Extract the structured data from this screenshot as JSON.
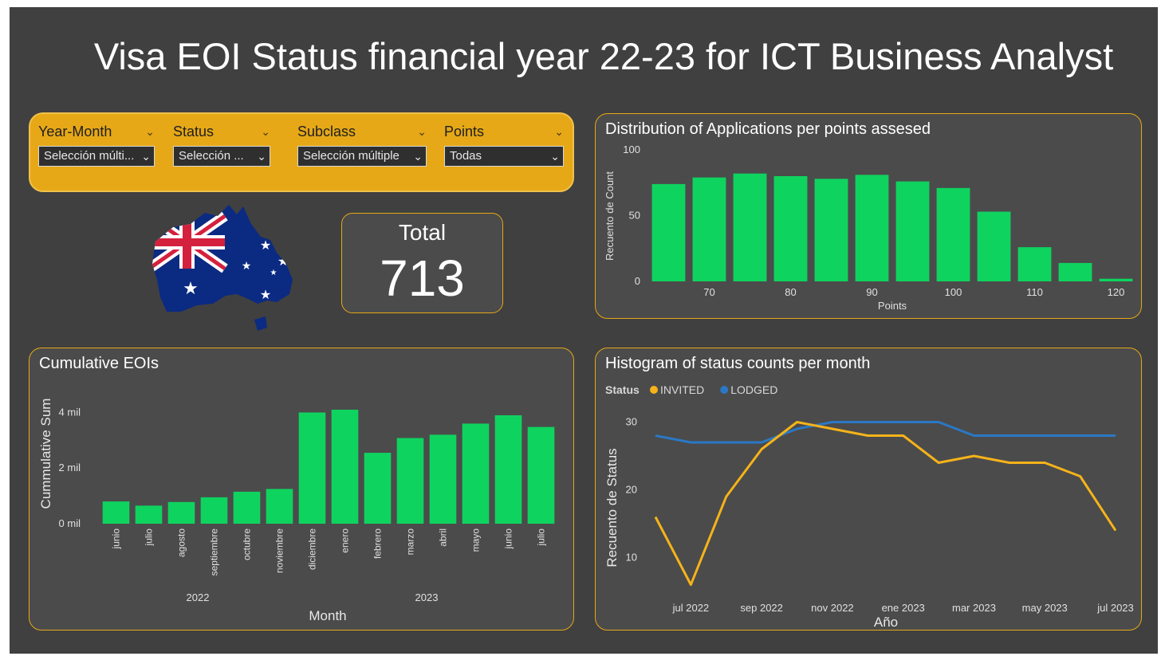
{
  "title": "Visa EOI Status financial year 22-23 for ICT Business Analyst",
  "slicers": [
    {
      "label": "Year-Month",
      "value": "Selección múlti..."
    },
    {
      "label": "Status",
      "value": "Selección ..."
    },
    {
      "label": "Subclass",
      "value": "Selección múltiple"
    },
    {
      "label": "Points",
      "value": "Todas"
    }
  ],
  "card": {
    "label": "Total",
    "value": "713"
  },
  "colors": {
    "bar": "#0fd35f",
    "invited": "#f5b31a",
    "lodged": "#2a78c4",
    "accent": "#e6a817"
  },
  "icons": {
    "flag": "australia-flag-map-icon",
    "chevron": "chevron-down-icon"
  },
  "chart_data": [
    {
      "type": "bar",
      "title": "Distribution of Applications per points assesed",
      "xlabel": "Points",
      "ylabel": "Recuento de Count",
      "x": [
        65,
        70,
        75,
        80,
        85,
        90,
        95,
        100,
        105,
        110,
        115,
        120
      ],
      "values": [
        74,
        79,
        82,
        80,
        78,
        81,
        76,
        71,
        53,
        26,
        14,
        2
      ],
      "xticks": [
        70,
        80,
        90,
        100,
        110,
        120
      ],
      "yticks": [
        0,
        50,
        100
      ],
      "ylim": [
        0,
        100
      ],
      "grid": false
    },
    {
      "type": "bar",
      "title": "Cumulative EOIs",
      "xlabel": "Month",
      "ylabel": "Cummulative Sum",
      "categories": [
        "junio",
        "julio",
        "agosto",
        "septiembre",
        "octubre",
        "noviembre",
        "diciembre",
        "enero",
        "febrero",
        "marzo",
        "abril",
        "mayo",
        "junio",
        "julio"
      ],
      "values": [
        800,
        650,
        780,
        950,
        1150,
        1250,
        4000,
        4100,
        2550,
        3080,
        3200,
        3600,
        3900,
        3480
      ],
      "years": [
        {
          "label": "2022",
          "from": 0,
          "to": 5
        },
        {
          "label": "2023",
          "from": 6,
          "to": 13
        }
      ],
      "ytick_labels": [
        "0 mil",
        "2 mil",
        "4 mil"
      ],
      "yticks": [
        0,
        2000,
        4000
      ],
      "ylim": [
        0,
        4300
      ],
      "grid": false
    },
    {
      "type": "line",
      "title": "Histogram of status counts per month",
      "xlabel": "Año",
      "ylabel": "Recuento de Status",
      "legend": {
        "title": "Status",
        "position": "top-left"
      },
      "x": [
        "2022-06",
        "2022-07",
        "2022-08",
        "2022-09",
        "2022-10",
        "2022-11",
        "2022-12",
        "2023-01",
        "2023-02",
        "2023-03",
        "2023-04",
        "2023-05",
        "2023-06",
        "2023-07"
      ],
      "xtick_labels": [
        "jul 2022",
        "sep 2022",
        "nov 2022",
        "ene 2023",
        "mar 2023",
        "may 2023",
        "jul 2023"
      ],
      "series": [
        {
          "name": "INVITED",
          "values": [
            16,
            6,
            19,
            26,
            30,
            29,
            28,
            28,
            24,
            25,
            24,
            24,
            22,
            14
          ]
        },
        {
          "name": "LODGED",
          "values": [
            28,
            27,
            27,
            27,
            29,
            30,
            30,
            30,
            30,
            28,
            28,
            28,
            28,
            28
          ]
        }
      ],
      "yticks": [
        10,
        20,
        30
      ],
      "ylim": [
        5,
        31
      ],
      "grid": false
    }
  ]
}
